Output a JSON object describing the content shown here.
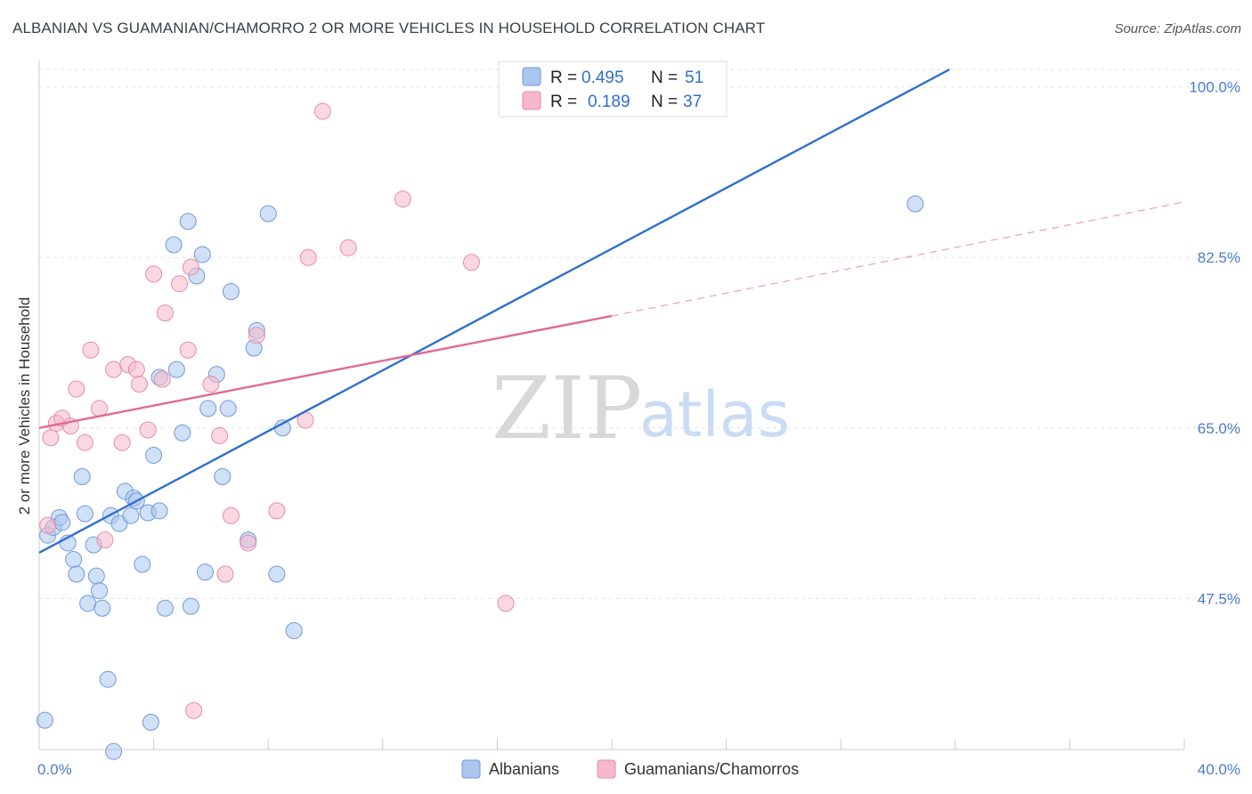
{
  "title": "ALBANIAN VS GUAMANIAN/CHAMORRO 2 OR MORE VEHICLES IN HOUSEHOLD CORRELATION CHART",
  "source": "Source: ZipAtlas.com",
  "watermark": {
    "zip": "ZIP",
    "atlas": "atlas"
  },
  "legend": {
    "rows": [
      {
        "r_label": "R =",
        "r_value": "0.495",
        "n_label": "N =",
        "n_value": "51",
        "color": "#a9c6ef"
      },
      {
        "r_label": "R =",
        "r_value": "0.189",
        "n_label": "N =",
        "n_value": "37",
        "color": "#f6b8cb"
      }
    ]
  },
  "bottom_legend": [
    {
      "label": "Albanians",
      "color": "#a9c6ef"
    },
    {
      "label": "Guamanians/Chamorros",
      "color": "#f6b8cb"
    }
  ],
  "chart_data": {
    "type": "scatter",
    "xlabel": "",
    "ylabel": "2 or more Vehicles in Household",
    "xlim": [
      0,
      40
    ],
    "ylim": [
      32,
      101.8
    ],
    "x_tick_labels": [
      {
        "value": 0,
        "label": "0.0%"
      },
      {
        "value": 40,
        "label": "40.0%"
      }
    ],
    "y_tick_labels": [
      {
        "value": 100,
        "label": "100.0%"
      },
      {
        "value": 82.5,
        "label": "82.5%"
      },
      {
        "value": 65,
        "label": "65.0%"
      },
      {
        "value": 47.5,
        "label": "47.5%"
      }
    ],
    "grid": true,
    "series": [
      {
        "name": "Albanians",
        "color": "#a9c6ef",
        "stroke": "#6f9ad8",
        "trend": {
          "x": [
            0,
            31.8
          ],
          "y": [
            52.2,
            101.8
          ],
          "color": "#2f6fd0"
        },
        "points": [
          [
            0.3,
            54.0
          ],
          [
            0.5,
            54.8
          ],
          [
            0.7,
            55.8
          ],
          [
            0.8,
            55.3
          ],
          [
            1.0,
            53.2
          ],
          [
            1.2,
            51.5
          ],
          [
            1.3,
            50.0
          ],
          [
            1.5,
            60.0
          ],
          [
            1.6,
            56.2
          ],
          [
            1.7,
            47.0
          ],
          [
            2.0,
            49.8
          ],
          [
            2.1,
            48.3
          ],
          [
            2.2,
            46.5
          ],
          [
            2.4,
            39.2
          ],
          [
            2.5,
            56.0
          ],
          [
            2.6,
            31.8
          ],
          [
            2.8,
            55.2
          ],
          [
            3.0,
            58.5
          ],
          [
            3.2,
            56.0
          ],
          [
            3.3,
            57.8
          ],
          [
            3.4,
            57.5
          ],
          [
            3.6,
            51.0
          ],
          [
            3.8,
            56.3
          ],
          [
            3.9,
            34.8
          ],
          [
            4.0,
            62.2
          ],
          [
            4.2,
            56.5
          ],
          [
            4.4,
            46.5
          ],
          [
            4.7,
            83.8
          ],
          [
            4.8,
            71.0
          ],
          [
            5.0,
            64.5
          ],
          [
            5.2,
            86.2
          ],
          [
            5.3,
            46.7
          ],
          [
            5.5,
            80.6
          ],
          [
            5.7,
            82.8
          ],
          [
            5.8,
            50.2
          ],
          [
            5.9,
            67.0
          ],
          [
            6.2,
            70.5
          ],
          [
            6.4,
            60.0
          ],
          [
            6.6,
            67.0
          ],
          [
            6.7,
            79.0
          ],
          [
            7.3,
            53.5
          ],
          [
            7.5,
            73.2
          ],
          [
            7.6,
            75.0
          ],
          [
            8.0,
            87.0
          ],
          [
            8.3,
            50.0
          ],
          [
            8.5,
            65.0
          ],
          [
            8.9,
            44.2
          ],
          [
            30.6,
            88.0
          ],
          [
            0.2,
            35.0
          ],
          [
            4.2,
            70.2
          ],
          [
            1.9,
            53.0
          ]
        ]
      },
      {
        "name": "Guamanians/Chamorros",
        "color": "#f6b8cb",
        "stroke": "#e88aa8",
        "trend": {
          "x": [
            0,
            20.0
          ],
          "y": [
            65.0,
            76.5
          ],
          "color": "#e06a93"
        },
        "trend_ext": {
          "x": [
            20.0,
            40.0
          ],
          "y": [
            76.5,
            88.2
          ],
          "color": "#e8a0ba"
        },
        "points": [
          [
            0.3,
            55.0
          ],
          [
            0.4,
            64.0
          ],
          [
            0.6,
            65.5
          ],
          [
            0.8,
            66.0
          ],
          [
            1.1,
            65.2
          ],
          [
            1.3,
            69.0
          ],
          [
            1.6,
            63.5
          ],
          [
            1.8,
            73.0
          ],
          [
            2.1,
            67.0
          ],
          [
            2.3,
            53.5
          ],
          [
            2.6,
            71.0
          ],
          [
            2.9,
            63.5
          ],
          [
            3.1,
            71.5
          ],
          [
            3.4,
            71.0
          ],
          [
            3.5,
            69.5
          ],
          [
            3.8,
            64.8
          ],
          [
            4.0,
            80.8
          ],
          [
            4.3,
            70.0
          ],
          [
            4.4,
            76.8
          ],
          [
            4.9,
            79.8
          ],
          [
            5.2,
            73.0
          ],
          [
            5.3,
            81.5
          ],
          [
            5.4,
            36.0
          ],
          [
            6.0,
            69.5
          ],
          [
            6.3,
            64.2
          ],
          [
            6.5,
            50.0
          ],
          [
            6.7,
            56.0
          ],
          [
            7.3,
            53.2
          ],
          [
            7.6,
            74.5
          ],
          [
            8.3,
            56.5
          ],
          [
            9.3,
            65.8
          ],
          [
            9.4,
            82.5
          ],
          [
            9.9,
            97.5
          ],
          [
            10.8,
            83.5
          ],
          [
            12.7,
            88.5
          ],
          [
            15.1,
            82.0
          ],
          [
            16.3,
            47.0
          ]
        ]
      }
    ]
  }
}
